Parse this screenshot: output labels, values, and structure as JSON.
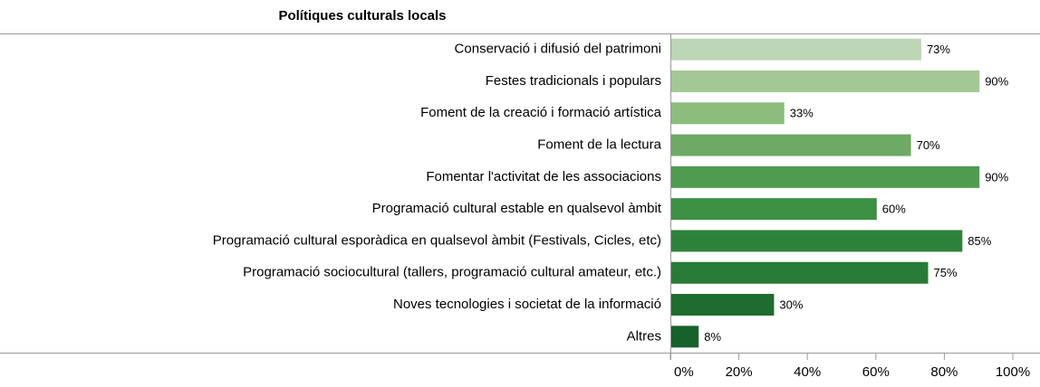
{
  "chart_data": {
    "type": "bar",
    "orientation": "horizontal",
    "title": "Polítiques culturals locals",
    "categories": [
      "Conservació i difusió del patrimoni",
      "Festes tradicionals i populars",
      "Foment de la creació i formació artística",
      "Foment de la lectura",
      "Fomentar l'activitat de les associacions",
      "Programació cultural estable en qualsevol àmbit",
      "Programació cultural esporàdica en qualsevol àmbit (Festivals, Cicles, etc)",
      "Programació sociocultural (tallers, programació cultural amateur, etc.)",
      "Noves tecnologies i societat de la informació",
      "Altres"
    ],
    "values": [
      73,
      90,
      33,
      70,
      90,
      60,
      85,
      75,
      30,
      8
    ],
    "value_labels": [
      "73%",
      "90%",
      "33%",
      "70%",
      "90%",
      "60%",
      "85%",
      "75%",
      "30%",
      "8%"
    ],
    "colors": [
      "#bcd6b6",
      "#a3c895",
      "#8cbd7d",
      "#6ea965",
      "#4f9c50",
      "#3c9044",
      "#2d823a",
      "#287b36",
      "#1e6c2e",
      "#17612a"
    ],
    "xlim": [
      0,
      100
    ],
    "xticks": [
      {
        "value": 0,
        "label": "0%"
      },
      {
        "value": 20,
        "label": "20%"
      },
      {
        "value": 40,
        "label": "40%"
      },
      {
        "value": 60,
        "label": "60%"
      },
      {
        "value": 80,
        "label": "80%"
      },
      {
        "value": 100,
        "label": "100%"
      }
    ]
  }
}
